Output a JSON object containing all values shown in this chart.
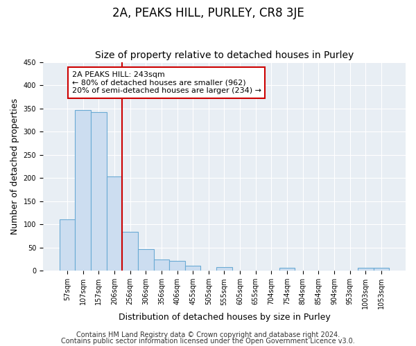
{
  "title": "2A, PEAKS HILL, PURLEY, CR8 3JE",
  "subtitle": "Size of property relative to detached houses in Purley",
  "xlabel": "Distribution of detached houses by size in Purley",
  "ylabel": "Number of detached properties",
  "bar_labels": [
    "57sqm",
    "107sqm",
    "157sqm",
    "206sqm",
    "256sqm",
    "306sqm",
    "356sqm",
    "406sqm",
    "455sqm",
    "505sqm",
    "555sqm",
    "605sqm",
    "655sqm",
    "704sqm",
    "754sqm",
    "804sqm",
    "854sqm",
    "904sqm",
    "953sqm",
    "1003sqm",
    "1053sqm"
  ],
  "bar_values": [
    111,
    347,
    342,
    204,
    84,
    47,
    25,
    21,
    11,
    0,
    8,
    0,
    0,
    0,
    6,
    0,
    0,
    0,
    0,
    7,
    7
  ],
  "bar_color": "#ccddf0",
  "bar_edgecolor": "#6aaad4",
  "vline_color": "#cc0000",
  "annotation_text": "2A PEAKS HILL: 243sqm\n← 80% of detached houses are smaller (962)\n20% of semi-detached houses are larger (234) →",
  "annotation_box_edgecolor": "#cc0000",
  "annotation_box_facecolor": "#ffffff",
  "ylim": [
    0,
    450
  ],
  "yticks": [
    0,
    50,
    100,
    150,
    200,
    250,
    300,
    350,
    400,
    450
  ],
  "footer_line1": "Contains HM Land Registry data © Crown copyright and database right 2024.",
  "footer_line2": "Contains public sector information licensed under the Open Government Licence v3.0.",
  "fig_background_color": "#ffffff",
  "plot_background_color": "#e8eef4",
  "grid_color": "#ffffff",
  "title_fontsize": 12,
  "subtitle_fontsize": 10,
  "axis_label_fontsize": 9,
  "tick_fontsize": 7,
  "annotation_fontsize": 8,
  "footer_fontsize": 7
}
